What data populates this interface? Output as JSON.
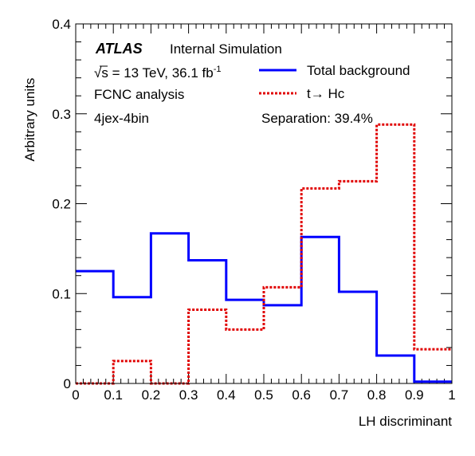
{
  "chart_data": {
    "type": "histogram",
    "xlabel": "LH discriminant",
    "ylabel": "Arbitrary units",
    "xlim": [
      0,
      1
    ],
    "ylim": [
      0,
      0.4
    ],
    "x_ticks": [
      "0",
      "0.1",
      "0.2",
      "0.3",
      "0.4",
      "0.5",
      "0.6",
      "0.7",
      "0.8",
      "0.9",
      "1"
    ],
    "y_ticks": [
      "0",
      "0.1",
      "0.2",
      "0.3",
      "0.4"
    ],
    "bin_edges": [
      0,
      0.1,
      0.2,
      0.3,
      0.4,
      0.5,
      0.6,
      0.7,
      0.8,
      0.9,
      1.0
    ],
    "series": [
      {
        "name": "Total background",
        "color": "#0000ff",
        "style": "solid",
        "values": [
          0.125,
          0.096,
          0.167,
          0.137,
          0.093,
          0.087,
          0.163,
          0.102,
          0.031,
          0.002
        ]
      },
      {
        "name": "t→ Hc",
        "color": "#e00000",
        "style": "dotted",
        "values": [
          0.0,
          0.025,
          0.0,
          0.082,
          0.06,
          0.107,
          0.217,
          0.225,
          0.288,
          0.038
        ]
      }
    ],
    "legend_position": "top-right",
    "annotations": {
      "atlas": "ATLAS",
      "label": "Internal  Simulation",
      "energy_sqrt": "√s",
      "energy_rest": " = 13 TeV, 36.1 fb",
      "energy_sup": "-1",
      "analysis": "FCNC analysis",
      "region": "4jex-4bin",
      "separation": "Separation: 39.4%"
    }
  }
}
